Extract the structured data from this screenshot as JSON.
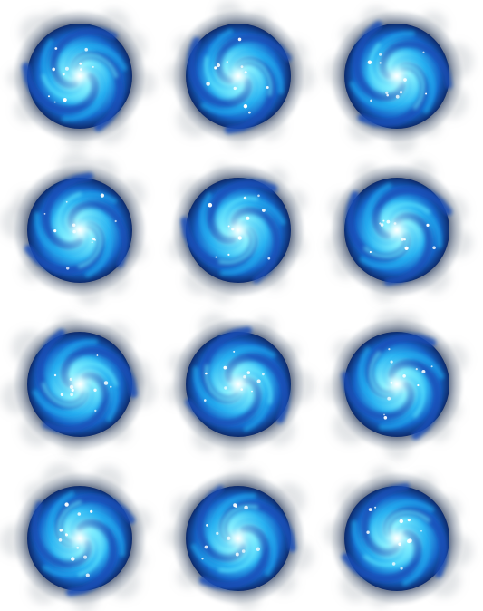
{
  "sprite_sheet": {
    "rows": 4,
    "columns": 3,
    "frame_count": 12,
    "palette": {
      "core": "#e8ffff",
      "inner": "#5fe6ff",
      "mid": "#1fa8f0",
      "outer": "#1550b8",
      "rim": "#0b1f4f",
      "smoke": "#9aa3ad",
      "sparkle": "#ffffff"
    },
    "frames": [
      {
        "row": 1,
        "col": 1,
        "rotation_deg": 0
      },
      {
        "row": 1,
        "col": 2,
        "rotation_deg": 30
      },
      {
        "row": 1,
        "col": 3,
        "rotation_deg": 60
      },
      {
        "row": 2,
        "col": 1,
        "rotation_deg": 90
      },
      {
        "row": 2,
        "col": 2,
        "rotation_deg": 120
      },
      {
        "row": 2,
        "col": 3,
        "rotation_deg": 150
      },
      {
        "row": 3,
        "col": 1,
        "rotation_deg": 180
      },
      {
        "row": 3,
        "col": 2,
        "rotation_deg": 210
      },
      {
        "row": 3,
        "col": 3,
        "rotation_deg": 240
      },
      {
        "row": 4,
        "col": 1,
        "rotation_deg": 270
      },
      {
        "row": 4,
        "col": 2,
        "rotation_deg": 300
      },
      {
        "row": 4,
        "col": 3,
        "rotation_deg": 330
      }
    ]
  }
}
